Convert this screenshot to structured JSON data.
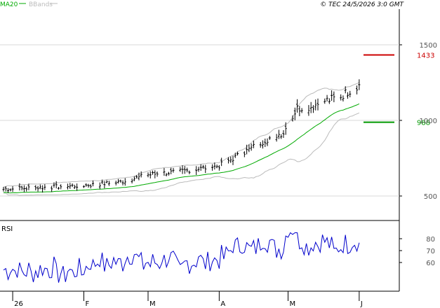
{
  "header": {
    "legend": [
      {
        "label": "MA20",
        "color": "#00aa00"
      },
      {
        "label": "BBands",
        "color": "#bbbbbb"
      }
    ],
    "copyright": "© TEC 24/5/2026 3:0 GMT"
  },
  "chart_data": [
    {
      "type": "candlestick",
      "y_ticks": [
        "1500",
        "1000",
        "500"
      ],
      "y_tick_values": [
        1500,
        1000,
        500
      ],
      "x_ticks": [
        "26",
        "F",
        "M",
        "A",
        "M",
        "J"
      ],
      "x_tick_days": [
        4,
        35,
        63,
        94,
        124,
        155
      ],
      "levels": [
        {
          "label": "1433",
          "value": 1433,
          "color": "#cc0000"
        },
        {
          "label": "988",
          "value": 988,
          "color": "#009900"
        }
      ],
      "colors": {
        "bars": "#000000",
        "ma20": "#00aa00",
        "bbands": "#bbbbbb"
      }
    },
    {
      "type": "line",
      "label": "RSI",
      "y_ticks": [
        "80",
        "70",
        "60"
      ],
      "y_tick_values": [
        80,
        70,
        60
      ],
      "color": "#0000cc"
    }
  ]
}
